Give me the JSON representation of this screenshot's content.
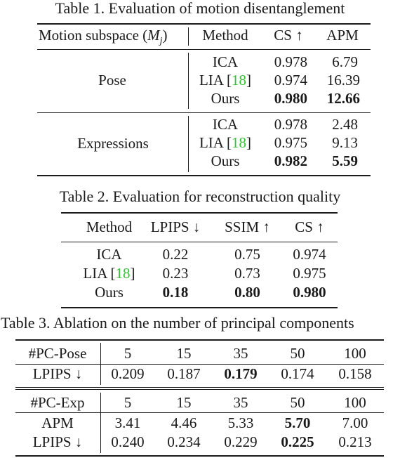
{
  "table1": {
    "caption": "Table 1. Evaluation of motion disentanglement",
    "headers": {
      "subspace_prefix": "Motion subspace (",
      "subspace_math": "M",
      "subspace_sub": "j",
      "subspace_suffix": ")",
      "method": "Method",
      "cs": "CS ↑",
      "apm": "APM"
    },
    "groups": [
      {
        "name": "Pose",
        "rows": [
          {
            "method": "ICA",
            "cite": "",
            "cs": "0.978",
            "apm": "6.79"
          },
          {
            "method": "LIA [",
            "cite": "18",
            "suffix": "]",
            "cs": "0.974",
            "apm": "16.39"
          },
          {
            "method": "Ours",
            "cite": "",
            "cs": "0.980",
            "apm": "12.66"
          }
        ]
      },
      {
        "name": "Expressions",
        "rows": [
          {
            "method": "ICA",
            "cite": "",
            "cs": "0.978",
            "apm": "2.48"
          },
          {
            "method": "LIA [",
            "cite": "18",
            "suffix": "]",
            "cs": "0.975",
            "apm": "9.13"
          },
          {
            "method": "Ours",
            "cite": "",
            "cs": "0.982",
            "apm": "5.59"
          }
        ]
      }
    ]
  },
  "table2": {
    "caption": "Table 2. Evaluation for reconstruction quality",
    "headers": {
      "method": "Method",
      "lpips": "LPIPS ↓",
      "ssim": "SSIM ↑",
      "cs": "CS ↑"
    },
    "rows": [
      {
        "method": "ICA",
        "cite": "",
        "lpips": "0.22",
        "ssim": "0.75",
        "cs": "0.974"
      },
      {
        "method": "LIA [",
        "cite": "18",
        "suffix": "]",
        "lpips": "0.23",
        "ssim": "0.73",
        "cs": "0.975"
      },
      {
        "method": "Ours",
        "cite": "",
        "lpips": "0.18",
        "ssim": "0.80",
        "cs": "0.980"
      }
    ]
  },
  "table3": {
    "caption": "Table 3. Ablation on the number of principal components",
    "pose": {
      "label": "#PC-Pose",
      "values": [
        "5",
        "15",
        "35",
        "50",
        "100"
      ],
      "lpips_label": "LPIPS ↓",
      "lpips": [
        "0.209",
        "0.187",
        "0.179",
        "0.174",
        "0.158"
      ]
    },
    "exp": {
      "label": "#PC-Exp",
      "values": [
        "5",
        "15",
        "35",
        "50",
        "100"
      ],
      "apm_label": "APM",
      "apm": [
        "3.41",
        "4.46",
        "5.33",
        "5.70",
        "7.00"
      ],
      "lpips_label": "LPIPS ↓",
      "lpips": [
        "0.240",
        "0.234",
        "0.229",
        "0.225",
        "0.213"
      ]
    }
  }
}
